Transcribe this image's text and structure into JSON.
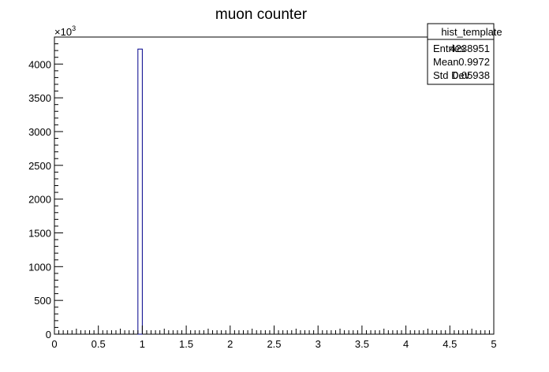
{
  "chart_data": {
    "type": "bar",
    "title": "muon counter",
    "xlabel": "",
    "ylabel": "",
    "y_exponent_label": "×10",
    "y_exponent_power": "3",
    "xlim": [
      0,
      5
    ],
    "ylim": [
      0,
      4400
    ],
    "bin_width": 0.05,
    "bins": [
      {
        "x_low": 0.0,
        "x_high": 0.05,
        "value": 0
      },
      {
        "x_low": 0.95,
        "x_high": 1.0,
        "value": 4222
      },
      {
        "x_low": 1.0,
        "x_high": 1.05,
        "value": 0
      }
    ],
    "bar_color": "#00008b",
    "x_tick_labels": [
      "0",
      "0.5",
      "1",
      "1.5",
      "2",
      "2.5",
      "3",
      "3.5",
      "4",
      "4.5",
      "5"
    ],
    "x_tick_values": [
      0,
      0.5,
      1,
      1.5,
      2,
      2.5,
      3,
      3.5,
      4,
      4.5,
      5
    ],
    "y_tick_labels": [
      "0",
      "500",
      "1000",
      "1500",
      "2000",
      "2500",
      "3000",
      "3500",
      "4000"
    ],
    "y_tick_values": [
      0,
      500,
      1000,
      1500,
      2000,
      2500,
      3000,
      3500,
      4000
    ],
    "grid": false,
    "legend": "none"
  },
  "stats_box": {
    "title": "hist_template",
    "rows": [
      {
        "label": "Entries",
        "value": "4238951"
      },
      {
        "label": "Mean",
        "value": "0.9972"
      },
      {
        "label": "Std Dev",
        "value": "0.05938"
      }
    ]
  }
}
